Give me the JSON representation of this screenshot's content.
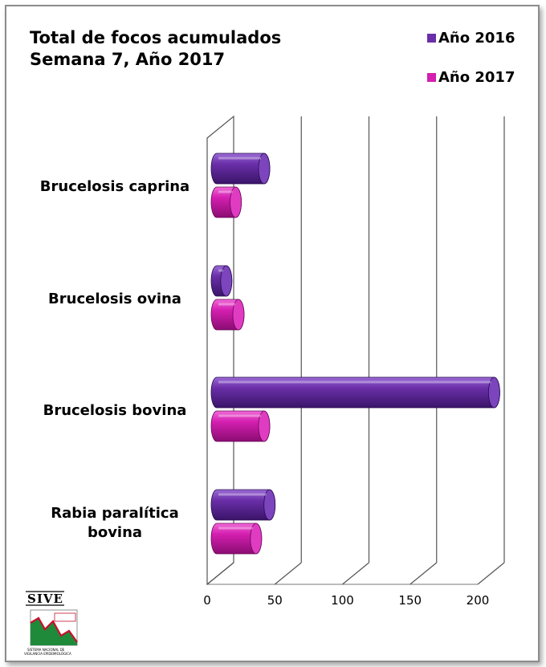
{
  "chart_data": {
    "type": "bar",
    "orientation": "horizontal",
    "title_lines": [
      "Total de focos acumulados",
      "Semana 7, Año 2017"
    ],
    "categories": [
      "Brucelosis caprina",
      "Brucelosis ovina",
      "Brucelosis bovina",
      "Rabia paralítica bovina"
    ],
    "category_label_lines": [
      [
        "Brucelosis caprina"
      ],
      [
        "Brucelosis ovina"
      ],
      [
        "Brucelosis bovina"
      ],
      [
        "Rabia paralítica",
        "bovina"
      ]
    ],
    "series": [
      {
        "name": "Año 2016",
        "color": "#6a2fa8",
        "values": [
          35,
          7,
          205,
          39
        ]
      },
      {
        "name": "Año 2017",
        "color": "#d41fb0",
        "values": [
          14,
          16,
          35,
          29
        ]
      }
    ],
    "xlim": [
      0,
      200
    ],
    "xticks": [
      0,
      50,
      100,
      150,
      200
    ],
    "grid": true,
    "legend_position": "top-right",
    "style": "3d-cylinder"
  },
  "logo": {
    "word": "SIVE",
    "subtitle_lines": [
      "SISTEMA NACIONAL DE",
      "VIGILANCIA EPIDEMIOLÓGICA"
    ]
  }
}
